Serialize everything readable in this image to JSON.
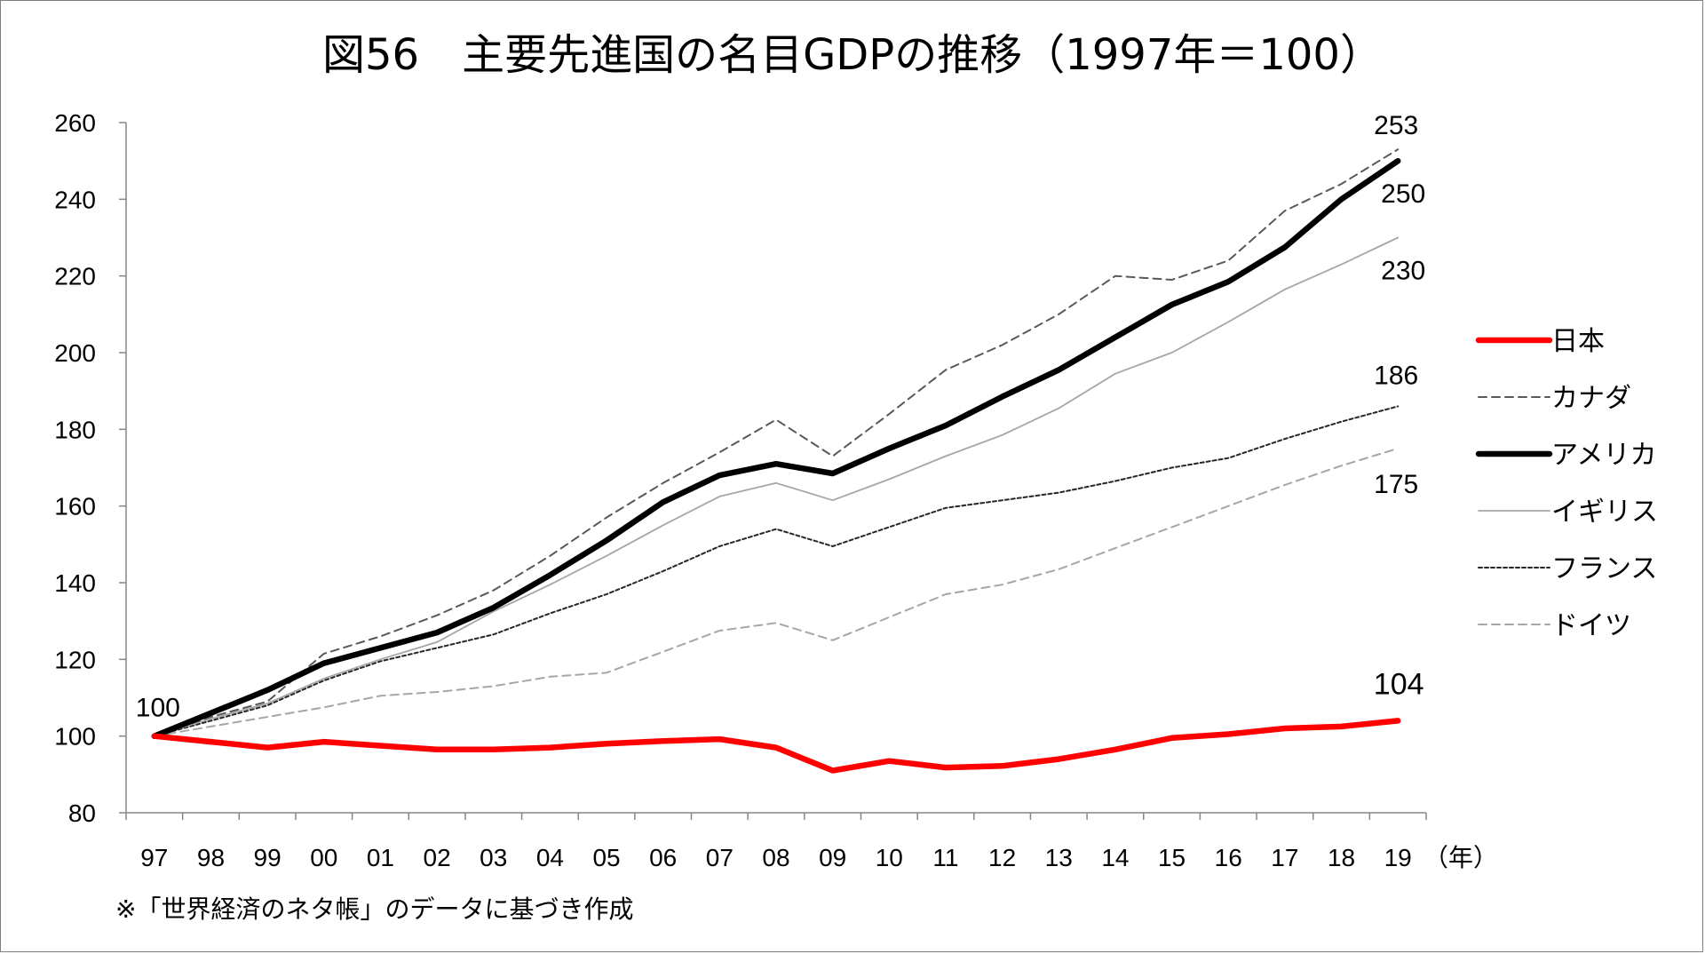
{
  "chart_data": {
    "type": "line",
    "title": "図56　主要先進国の名目GDPの推移（1997年＝100）",
    "xlabel": "（年）",
    "ylabel": "",
    "categories": [
      "97",
      "98",
      "99",
      "00",
      "01",
      "02",
      "03",
      "04",
      "05",
      "06",
      "07",
      "08",
      "09",
      "10",
      "11",
      "12",
      "13",
      "14",
      "15",
      "16",
      "17",
      "18",
      "19"
    ],
    "ylim": [
      80,
      260
    ],
    "yticks": [
      "80",
      "100",
      "120",
      "140",
      "160",
      "180",
      "200",
      "220",
      "240",
      "260"
    ],
    "grid": false,
    "legend_position": "right",
    "series": [
      {
        "name": "日本",
        "color": "#ff0000",
        "style": "solid-thick",
        "values": [
          100,
          98.5,
          97,
          98.5,
          97.5,
          96.5,
          96.5,
          97,
          98,
          98.7,
          99.2,
          97,
          91,
          93.5,
          91.8,
          92.2,
          94,
          96.5,
          99.5,
          100.5,
          102,
          102.5,
          104
        ]
      },
      {
        "name": "カナダ",
        "color": "#595959",
        "style": "dashed",
        "values": [
          100,
          105,
          109,
          121.5,
          126,
          131.5,
          138,
          147,
          157,
          166,
          174,
          182.5,
          173,
          184,
          195.5,
          202,
          210,
          220,
          219,
          224,
          237,
          244,
          253
        ]
      },
      {
        "name": "アメリカ",
        "color": "#000000",
        "style": "solid-thick",
        "values": [
          100,
          106,
          112,
          119,
          123,
          127,
          133.5,
          142,
          151,
          161,
          168,
          171,
          168.5,
          175,
          181,
          188.5,
          195.5,
          204,
          212.5,
          218.5,
          227.5,
          240,
          250
        ]
      },
      {
        "name": "イギリス",
        "color": "#a6a6a6",
        "style": "solid-thin",
        "values": [
          100,
          104.5,
          108.5,
          115,
          120,
          124.5,
          132.5,
          139.5,
          147,
          155,
          162.5,
          166,
          161.5,
          167,
          173,
          178.5,
          185.5,
          194.5,
          200,
          208,
          216.5,
          223,
          230
        ]
      },
      {
        "name": "フランス",
        "color": "#262626",
        "style": "dotted",
        "values": [
          100,
          104,
          108,
          114.5,
          119.5,
          123,
          126.5,
          132,
          137,
          143,
          149.5,
          154,
          149.5,
          154.5,
          159.5,
          161.5,
          163.5,
          166.5,
          170,
          172.5,
          177.5,
          182,
          186
        ]
      },
      {
        "name": "ドイツ",
        "color": "#a6a6a6",
        "style": "dashed",
        "values": [
          100,
          102.5,
          105,
          107.5,
          110.5,
          111.5,
          113,
          115.5,
          116.5,
          122,
          127.5,
          129.5,
          125,
          131,
          137,
          139.5,
          143.5,
          149,
          154.5,
          160,
          165.5,
          170.5,
          175
        ]
      }
    ],
    "annotations": [
      {
        "text": "100",
        "series": "start",
        "x": "97",
        "y": 100
      },
      {
        "text": "253",
        "series": "カナダ",
        "x": "19",
        "y": 253
      },
      {
        "text": "250",
        "series": "アメリカ",
        "x": "19",
        "y": 250
      },
      {
        "text": "230",
        "series": "イギリス",
        "x": "19",
        "y": 230
      },
      {
        "text": "186",
        "series": "フランス",
        "x": "19",
        "y": 186
      },
      {
        "text": "175",
        "series": "ドイツ",
        "x": "19",
        "y": 175
      },
      {
        "text": "104",
        "series": "日本",
        "x": "19",
        "y": 104,
        "color": "#ff0000"
      }
    ]
  },
  "footnote": "※「世界経済のネタ帳」のデータに基づき作成"
}
